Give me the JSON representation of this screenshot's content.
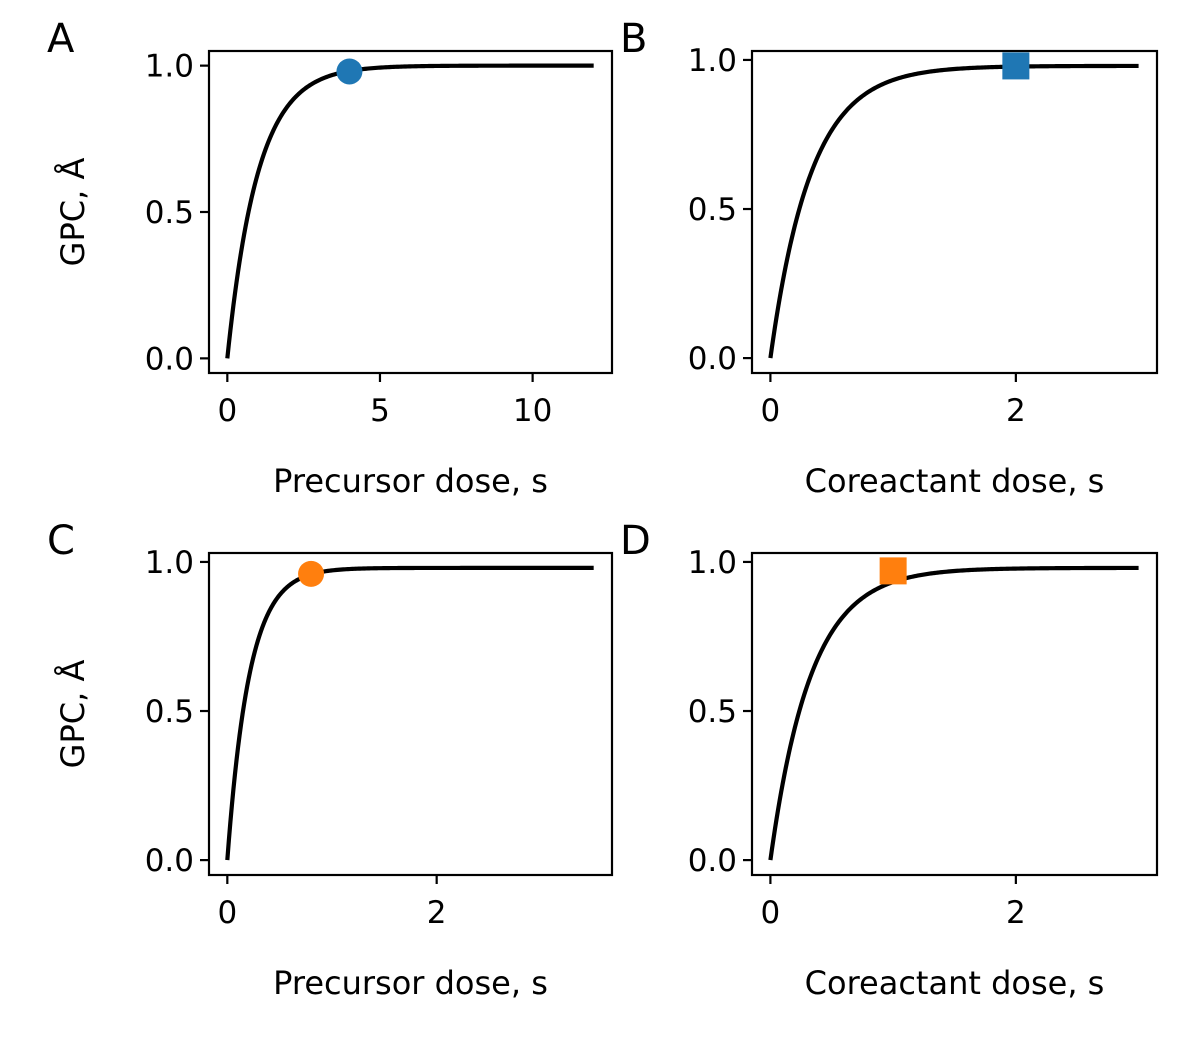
{
  "colors": {
    "blue": "#1f77b4",
    "orange": "#ff7f0e",
    "curve": "#000000"
  },
  "chart_data": [
    {
      "type": "line",
      "panel": "A",
      "xlabel": "Precursor dose, s",
      "ylabel": "GPC, Å",
      "xlim": [
        -0.6,
        12.6
      ],
      "ylim": [
        -0.05,
        1.05
      ],
      "xticks": [
        0,
        5,
        10
      ],
      "xtick_labels": [
        "0",
        "5",
        "10"
      ],
      "yticks": [
        0.0,
        0.5,
        1.0
      ],
      "ytick_labels": [
        "0.0",
        "0.5",
        "1.0"
      ],
      "series": [
        {
          "name": "GPC curve",
          "model": "saturating_exponential",
          "x_range": [
            0,
            12
          ],
          "plateau": 1.0,
          "time_constant": 1.0
        }
      ],
      "marker": {
        "shape": "circle",
        "color": "#1f77b4",
        "x": 4.0,
        "y": 0.98
      }
    },
    {
      "type": "line",
      "panel": "B",
      "xlabel": "Coreactant dose, s",
      "ylabel": "",
      "xlim": [
        -0.15,
        3.15
      ],
      "ylim": [
        -0.05,
        1.03
      ],
      "xticks": [
        0,
        2
      ],
      "xtick_labels": [
        "0",
        "2"
      ],
      "yticks": [
        0.0,
        0.5,
        1.0
      ],
      "ytick_labels": [
        "0.0",
        "0.5",
        "1.0"
      ],
      "series": [
        {
          "name": "GPC curve",
          "model": "saturating_exponential",
          "x_range": [
            0,
            3
          ],
          "plateau": 0.98,
          "time_constant": 0.33
        }
      ],
      "marker": {
        "shape": "square",
        "color": "#1f77b4",
        "x": 2.0,
        "y": 0.98
      }
    },
    {
      "type": "line",
      "panel": "C",
      "xlabel": "Precursor dose, s",
      "ylabel": "GPC, Å",
      "xlim": [
        -0.175,
        3.675
      ],
      "ylim": [
        -0.05,
        1.03
      ],
      "xticks": [
        0,
        2
      ],
      "xtick_labels": [
        "0",
        "2"
      ],
      "yticks": [
        0.0,
        0.5,
        1.0
      ],
      "ytick_labels": [
        "0.0",
        "0.5",
        "1.0"
      ],
      "series": [
        {
          "name": "GPC curve",
          "model": "saturating_exponential",
          "x_range": [
            0,
            3.5
          ],
          "plateau": 0.98,
          "time_constant": 0.21
        }
      ],
      "marker": {
        "shape": "circle",
        "color": "#ff7f0e",
        "x": 0.8,
        "y": 0.96
      }
    },
    {
      "type": "line",
      "panel": "D",
      "xlabel": "Coreactant dose, s",
      "ylabel": "",
      "xlim": [
        -0.15,
        3.15
      ],
      "ylim": [
        -0.05,
        1.03
      ],
      "xticks": [
        0,
        2
      ],
      "xtick_labels": [
        "0",
        "2"
      ],
      "yticks": [
        0.0,
        0.5,
        1.0
      ],
      "ytick_labels": [
        "0.0",
        "0.5",
        "1.0"
      ],
      "series": [
        {
          "name": "GPC curve",
          "model": "saturating_exponential",
          "x_range": [
            0,
            3
          ],
          "plateau": 0.98,
          "time_constant": 0.33
        }
      ],
      "marker": {
        "shape": "square",
        "color": "#ff7f0e",
        "x": 1.0,
        "y": 0.97
      }
    }
  ]
}
